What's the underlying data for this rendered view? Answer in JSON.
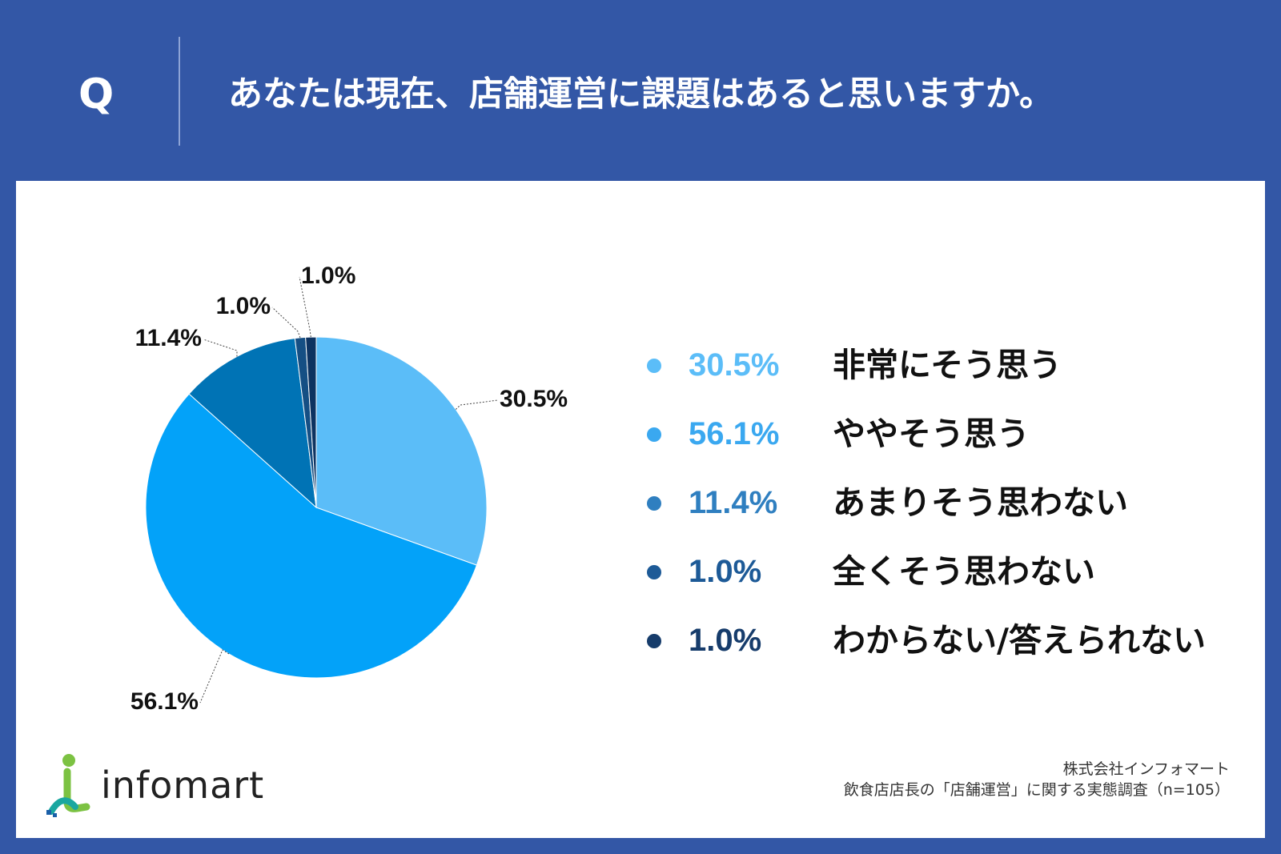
{
  "header": {
    "q_mark": "Q",
    "question": "あなたは現在、店舗運営に課題はあると思いますか。"
  },
  "chart_data": {
    "type": "pie",
    "slices": [
      {
        "label": "非常にそう思う",
        "value": 30.5,
        "display": "30.5%",
        "color": "#5bbdf8"
      },
      {
        "label": "ややそう思う",
        "value": 56.1,
        "display": "56.1%",
        "color": "#03a2f9"
      },
      {
        "label": "あまりそう思わない",
        "value": 11.4,
        "display": "11.4%",
        "color": "#0073b5"
      },
      {
        "label": "全くそう思わない",
        "value": 1.0,
        "display": "1.0%",
        "color": "#154f84"
      },
      {
        "label": "わからない/答えられない",
        "value": 1.0,
        "display": "1.0%",
        "color": "#0d3361"
      }
    ],
    "legend_colors": [
      "#5bbdf8",
      "#3aa8f0",
      "#2f7fc0",
      "#1d5a97",
      "#163c6b"
    ]
  },
  "footer": {
    "logo_text": "infomart",
    "source_line1": "株式会社インフォマート",
    "source_line2": "飲食店店長の「店舗運営」に関する実態調査（n=105）"
  }
}
